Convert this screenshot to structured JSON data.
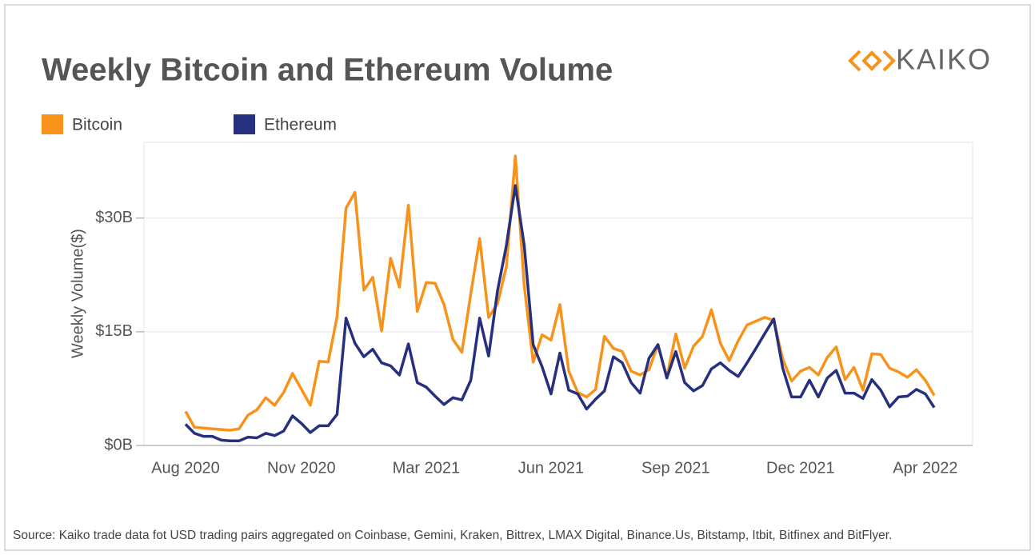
{
  "chart_data": {
    "type": "line",
    "title": "Weekly Bitcoin and Ethereum Volume",
    "logo": "KAIKO",
    "y_label": "Weekly Volume($)",
    "source": "Source: Kaiko trade data fot USD trading pairs aggregated on Coinbase, Gemini, Kraken, Bittrex, LMAX Digital, Binance.Us, Bitstamp, Itbit, Bitfinex and BitFlyer.",
    "grid": true,
    "legend": "top-left",
    "ylim": [
      0,
      40
    ],
    "yticks": [
      {
        "value": 0,
        "label": "$0B"
      },
      {
        "value": 15,
        "label": "$15B"
      },
      {
        "value": 30,
        "label": "$30B"
      }
    ],
    "categories": [
      "Aug 2020",
      null,
      null,
      null,
      null,
      null,
      null,
      null,
      null,
      null,
      null,
      null,
      null,
      "Nov 2020",
      null,
      null,
      null,
      null,
      null,
      null,
      null,
      null,
      null,
      null,
      null,
      null,
      null,
      "Mar 2021",
      null,
      null,
      null,
      null,
      null,
      null,
      null,
      null,
      null,
      null,
      null,
      null,
      null,
      "Jun 2021",
      null,
      null,
      null,
      null,
      null,
      null,
      null,
      null,
      null,
      null,
      null,
      null,
      null,
      "Sep 2021",
      null,
      null,
      null,
      null,
      null,
      null,
      null,
      null,
      null,
      null,
      null,
      null,
      null,
      "Dec 2021",
      null,
      null,
      null,
      null,
      null,
      null,
      null,
      null,
      null,
      null,
      null,
      null,
      null,
      "Apr 2022",
      null
    ],
    "series": [
      {
        "name": "Bitcoin",
        "color": "#f7931a",
        "values": [
          4.5,
          2.4,
          2.3,
          2.2,
          2.1,
          2.0,
          2.2,
          4.0,
          4.7,
          6.3,
          5.3,
          7.0,
          9.5,
          7.4,
          5.3,
          11.1,
          11.0,
          17.0,
          31.3,
          33.4,
          20.5,
          22.2,
          15.1,
          24.7,
          20.9,
          31.7,
          17.7,
          21.5,
          21.4,
          18.6,
          14.0,
          12.3,
          20.0,
          27.3,
          16.9,
          18.7,
          23.6,
          38.2,
          21.1,
          11.0,
          14.6,
          13.9,
          18.6,
          9.8,
          7.0,
          6.4,
          7.4,
          14.4,
          12.8,
          12.4,
          9.8,
          9.3,
          10.0,
          13.3,
          9.0,
          14.7,
          10.2,
          13.1,
          14.4,
          17.9,
          13.5,
          11.2,
          13.8,
          15.9,
          16.4,
          16.9,
          16.5,
          11.4,
          8.5,
          9.8,
          10.3,
          9.3,
          11.6,
          13.0,
          8.7,
          10.3,
          7.3,
          12.1,
          12.0,
          10.2,
          9.7,
          9.0,
          10.0,
          8.6,
          6.6
        ]
      },
      {
        "name": "Ethereum",
        "color": "#27307f",
        "values": [
          2.8,
          1.6,
          1.2,
          1.2,
          0.7,
          0.6,
          0.6,
          1.1,
          1.0,
          1.6,
          1.3,
          1.9,
          3.9,
          2.9,
          1.7,
          2.6,
          2.6,
          4.1,
          16.8,
          13.5,
          11.7,
          12.7,
          10.9,
          10.5,
          9.3,
          13.4,
          8.3,
          7.7,
          6.5,
          5.4,
          6.3,
          6.0,
          8.6,
          16.8,
          11.8,
          20.4,
          26.4,
          34.3,
          26.4,
          13.3,
          10.4,
          6.8,
          12.2,
          7.3,
          6.8,
          4.8,
          6.1,
          7.2,
          11.7,
          10.9,
          8.3,
          6.9,
          11.5,
          13.3,
          8.9,
          12.4,
          8.3,
          7.2,
          7.9,
          10.1,
          10.9,
          9.9,
          9.1,
          10.9,
          12.8,
          14.8,
          16.7,
          10.2,
          6.4,
          6.4,
          8.6,
          6.4,
          8.9,
          9.9,
          6.9,
          6.9,
          6.2,
          8.7,
          7.3,
          5.1,
          6.4,
          6.5,
          7.4,
          6.8,
          5.0
        ]
      }
    ]
  }
}
